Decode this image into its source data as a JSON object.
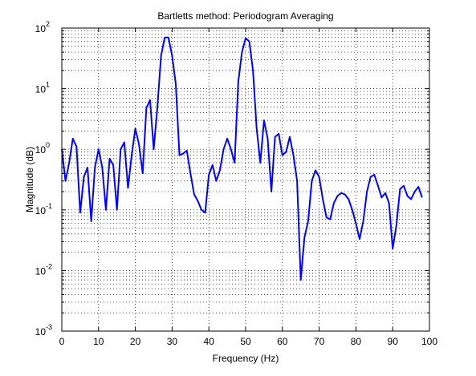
{
  "chart_data": {
    "type": "line",
    "title": "Bartletts method: Periodogram Averaging",
    "xlabel": "Frequency (Hz)",
    "ylabel": "Magnitude (dB)",
    "xlim": [
      0,
      100
    ],
    "ylim": [
      0.001,
      100
    ],
    "yscale": "log",
    "grid": true,
    "grid_minor": true,
    "line_color": "#0000ff",
    "x_ticks": [
      0,
      10,
      20,
      30,
      40,
      50,
      60,
      70,
      80,
      90,
      100
    ],
    "x_tick_labels": [
      "0",
      "10",
      "20",
      "30",
      "40",
      "50",
      "60",
      "70",
      "80",
      "90",
      "100"
    ],
    "y_ticks": [
      0.001,
      0.01,
      0.1,
      1,
      10,
      100
    ],
    "y_tick_labels": [
      {
        "base": "10",
        "exp": "-3"
      },
      {
        "base": "10",
        "exp": "-2"
      },
      {
        "base": "10",
        "exp": "-1"
      },
      {
        "base": "10",
        "exp": "0"
      },
      {
        "base": "10",
        "exp": "1"
      },
      {
        "base": "10",
        "exp": "2"
      }
    ],
    "series": [
      {
        "x": [
          0,
          1,
          2,
          3,
          4,
          5,
          6,
          7,
          8,
          9,
          10,
          11,
          12,
          13,
          14,
          15,
          16,
          17,
          18,
          19,
          20,
          21,
          22,
          23,
          24,
          25,
          26,
          27,
          28,
          29,
          30,
          31,
          32,
          33,
          34,
          35,
          36,
          37,
          38,
          39,
          40,
          41,
          42,
          43,
          44,
          45,
          46,
          47,
          48,
          49,
          50,
          51,
          52,
          53,
          54,
          55,
          56,
          57,
          58,
          59,
          60,
          61,
          62,
          63,
          64,
          65,
          66,
          67,
          68,
          69,
          70,
          71,
          72,
          73,
          74,
          75,
          76,
          77,
          78,
          79,
          80,
          81,
          82,
          83,
          84,
          85,
          86,
          87,
          88,
          89,
          90,
          91,
          92,
          93,
          94,
          95,
          96,
          97,
          98
        ],
        "y": [
          1.0,
          0.3,
          0.6,
          1.5,
          1.1,
          0.09,
          0.35,
          0.5,
          0.065,
          0.5,
          1.0,
          0.5,
          0.1,
          0.7,
          0.55,
          0.1,
          1.0,
          1.3,
          0.23,
          0.8,
          2.2,
          1.2,
          0.4,
          4.8,
          6.5,
          1.0,
          5.0,
          35,
          70,
          70,
          35,
          12,
          0.8,
          0.85,
          0.95,
          0.4,
          0.18,
          0.14,
          0.1,
          0.09,
          0.38,
          0.55,
          0.3,
          0.45,
          1.0,
          1.5,
          1.0,
          0.6,
          13,
          40,
          68,
          60,
          20,
          2.2,
          0.6,
          3.0,
          1.5,
          0.2,
          1.6,
          1.8,
          0.8,
          0.9,
          1.6,
          0.8,
          0.3,
          0.007,
          0.035,
          0.065,
          0.3,
          0.45,
          0.35,
          0.15,
          0.075,
          0.07,
          0.13,
          0.17,
          0.19,
          0.18,
          0.15,
          0.1,
          0.06,
          0.033,
          0.065,
          0.2,
          0.35,
          0.38,
          0.25,
          0.16,
          0.19,
          0.13,
          0.023,
          0.055,
          0.22,
          0.25,
          0.17,
          0.15,
          0.2,
          0.24,
          0.16
        ]
      }
    ]
  }
}
